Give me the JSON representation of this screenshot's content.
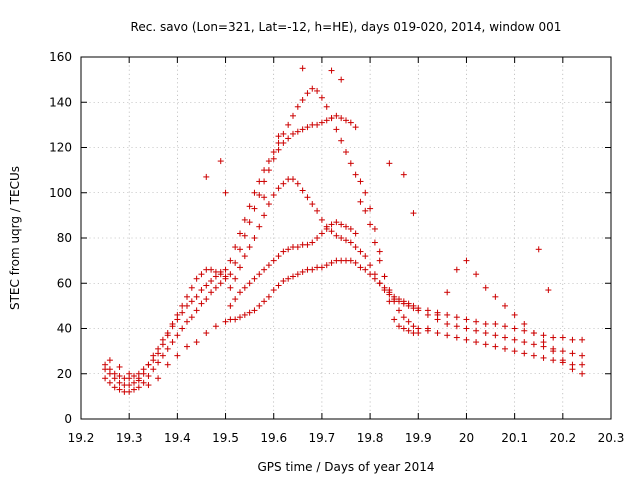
{
  "chart_data": {
    "type": "scatter",
    "title": "Rec. savo (Lon=321, Lat=-12, h=HE), days 019-020, 2014, window 001",
    "xlabel": "GPS time / Days of year 2014",
    "ylabel": "STEC from uqrg / TECUs",
    "xlim": [
      19.2,
      20.3
    ],
    "ylim": [
      0,
      160
    ],
    "xticks": [
      19.2,
      19.3,
      19.4,
      19.5,
      19.6,
      19.7,
      19.8,
      19.9,
      20.0,
      20.1,
      20.2,
      20.3
    ],
    "xtick_labels": [
      "19.2",
      "19.3",
      "19.4",
      "19.5",
      "19.6",
      "19.7",
      "19.8",
      "19.9",
      "20",
      "20.1",
      "20.2",
      "20.3"
    ],
    "yticks": [
      0,
      20,
      40,
      60,
      80,
      100,
      120,
      140,
      160
    ],
    "ytick_labels": [
      "0",
      "20",
      "40",
      "60",
      "80",
      "100",
      "120",
      "140",
      "160"
    ],
    "grid": true,
    "marker": "plus",
    "color": "#cc0000",
    "series": [
      {
        "name": "STEC",
        "x": [
          19.25,
          19.26,
          19.27,
          19.28,
          19.29,
          19.3,
          19.31,
          19.32,
          19.33,
          19.34,
          19.35,
          19.36,
          19.37,
          19.38,
          19.39,
          19.4,
          19.41,
          19.42,
          19.43,
          19.44,
          19.45,
          19.46,
          19.47,
          19.48,
          19.49,
          19.5,
          19.25,
          19.26,
          19.27,
          19.28,
          19.29,
          19.3,
          19.31,
          19.32,
          19.33,
          19.34,
          19.35,
          19.36,
          19.37,
          19.38,
          19.39,
          19.4,
          19.41,
          19.42,
          19.43,
          19.44,
          19.45,
          19.46,
          19.47,
          19.48,
          19.49,
          19.5,
          19.25,
          19.26,
          19.27,
          19.28,
          19.29,
          19.3,
          19.31,
          19.32,
          19.33,
          19.34,
          19.35,
          19.36,
          19.37,
          19.38,
          19.39,
          19.4,
          19.41,
          19.42,
          19.43,
          19.44,
          19.45,
          19.46,
          19.47,
          19.48,
          19.49,
          19.5,
          19.26,
          19.28,
          19.3,
          19.32,
          19.34,
          19.36,
          19.38,
          19.4,
          19.42,
          19.44,
          19.46,
          19.48,
          19.5,
          19.51,
          19.52,
          19.53,
          19.54,
          19.55,
          19.56,
          19.57,
          19.58,
          19.59,
          19.6,
          19.61,
          19.62,
          19.63,
          19.64,
          19.65,
          19.66,
          19.67,
          19.68,
          19.69,
          19.7,
          19.71,
          19.72,
          19.73,
          19.74,
          19.75,
          19.76,
          19.77,
          19.51,
          19.52,
          19.53,
          19.54,
          19.55,
          19.56,
          19.57,
          19.58,
          19.59,
          19.6,
          19.61,
          19.62,
          19.63,
          19.64,
          19.65,
          19.66,
          19.67,
          19.68,
          19.69,
          19.7,
          19.71,
          19.72,
          19.73,
          19.74,
          19.75,
          19.76,
          19.77,
          19.51,
          19.52,
          19.53,
          19.54,
          19.55,
          19.56,
          19.57,
          19.58,
          19.59,
          19.6,
          19.61,
          19.62,
          19.63,
          19.64,
          19.65,
          19.66,
          19.67,
          19.68,
          19.69,
          19.7,
          19.71,
          19.72,
          19.73,
          19.74,
          19.75,
          19.76,
          19.77,
          19.51,
          19.52,
          19.53,
          19.54,
          19.55,
          19.56,
          19.57,
          19.58,
          19.59,
          19.6,
          19.61,
          19.62,
          19.63,
          19.64,
          19.65,
          19.66,
          19.67,
          19.68,
          19.69,
          19.7,
          19.71,
          19.72,
          19.73,
          19.74,
          19.75,
          19.76,
          19.77,
          19.51,
          19.52,
          19.53,
          19.54,
          19.55,
          19.56,
          19.57,
          19.58,
          19.59,
          19.6,
          19.61,
          19.62,
          19.63,
          19.64,
          19.65,
          19.66,
          19.67,
          19.68,
          19.69,
          19.7,
          19.71,
          19.72,
          19.73,
          19.74,
          19.75,
          19.76,
          19.77,
          19.78,
          19.79,
          19.8,
          19.81,
          19.82,
          19.83,
          19.84,
          19.85,
          19.86,
          19.87,
          19.88,
          19.89,
          19.9,
          19.92,
          19.94,
          19.96,
          19.98,
          20.0,
          20.02,
          20.04,
          20.06,
          20.08,
          20.1,
          20.12,
          20.14,
          20.16,
          20.18,
          20.2,
          20.22,
          20.24,
          19.78,
          19.79,
          19.8,
          19.81,
          19.82,
          19.83,
          19.84,
          19.85,
          19.86,
          19.87,
          19.88,
          19.89,
          19.9,
          19.92,
          19.94,
          19.96,
          19.98,
          20.0,
          20.02,
          20.04,
          20.06,
          20.08,
          20.1,
          20.12,
          20.14,
          20.16,
          20.18,
          20.2,
          20.22,
          20.24,
          19.78,
          19.79,
          19.8,
          19.81,
          19.82,
          19.83,
          19.84,
          19.85,
          19.86,
          19.87,
          19.88,
          19.89,
          19.9,
          19.92,
          19.94,
          19.96,
          19.98,
          20.0,
          20.02,
          20.04,
          20.06,
          20.08,
          20.1,
          20.12,
          20.14,
          20.16,
          20.18,
          20.2,
          20.22,
          20.24,
          19.78,
          19.79,
          19.8,
          19.81,
          19.82,
          19.83,
          19.84,
          19.85,
          19.86,
          19.87,
          19.88,
          19.89,
          19.9,
          19.92,
          19.94,
          19.96,
          19.98,
          20.0,
          20.02,
          20.04,
          20.06,
          20.08,
          20.1,
          20.12,
          20.14,
          20.16,
          20.18,
          20.2,
          20.22,
          20.24,
          19.46,
          19.49,
          19.5,
          19.58,
          19.61,
          19.66,
          19.72,
          19.74,
          19.84,
          19.87,
          19.89,
          20.15,
          20.17
        ],
        "y": [
          22,
          20,
          18,
          16,
          15,
          15,
          16,
          18,
          20,
          24,
          28,
          31,
          35,
          38,
          41,
          44,
          47,
          50,
          52,
          54,
          57,
          59,
          61,
          63,
          65,
          66,
          18,
          16,
          14,
          13,
          12,
          12,
          13,
          14,
          16,
          19,
          22,
          25,
          28,
          31,
          34,
          37,
          40,
          43,
          45,
          48,
          51,
          53,
          56,
          58,
          60,
          62,
          24,
          22,
          20,
          19,
          18,
          18,
          19,
          20,
          22,
          24,
          26,
          29,
          33,
          37,
          42,
          46,
          50,
          54,
          58,
          62,
          64,
          66,
          66,
          65,
          64,
          63,
          26,
          23,
          20,
          17,
          15,
          18,
          24,
          28,
          32,
          34,
          38,
          41,
          43,
          44,
          44,
          45,
          46,
          47,
          48,
          50,
          52,
          54,
          57,
          59,
          61,
          62,
          63,
          64,
          65,
          66,
          66,
          67,
          67,
          68,
          69,
          70,
          70,
          70,
          70,
          69,
          50,
          53,
          56,
          58,
          60,
          62,
          64,
          66,
          68,
          70,
          72,
          74,
          75,
          76,
          76,
          77,
          77,
          78,
          80,
          82,
          84,
          86,
          87,
          86,
          85,
          84,
          82,
          58,
          62,
          67,
          72,
          76,
          80,
          85,
          90,
          95,
          99,
          102,
          104,
          106,
          106,
          104,
          101,
          98,
          95,
          92,
          88,
          85,
          83,
          81,
          80,
          79,
          78,
          76,
          64,
          69,
          75,
          81,
          87,
          93,
          99,
          105,
          110,
          115,
          119,
          122,
          124,
          126,
          127,
          128,
          129,
          130,
          130,
          131,
          132,
          133,
          134,
          133,
          132,
          131,
          129,
          70,
          76,
          82,
          88,
          94,
          100,
          105,
          110,
          114,
          118,
          122,
          126,
          130,
          134,
          138,
          141,
          144,
          146,
          145,
          142,
          138,
          133,
          128,
          123,
          118,
          113,
          108,
          67,
          66,
          64,
          62,
          60,
          58,
          56,
          54,
          53,
          52,
          51,
          50,
          49,
          48,
          47,
          46,
          45,
          44,
          43,
          42,
          42,
          41,
          40,
          39,
          38,
          37,
          36,
          36,
          35,
          35,
          74,
          72,
          68,
          64,
          60,
          57,
          55,
          53,
          52,
          51,
          50,
          49,
          48,
          46,
          44,
          42,
          41,
          40,
          39,
          38,
          37,
          36,
          35,
          34,
          33,
          32,
          31,
          30,
          29,
          28,
          96,
          92,
          86,
          78,
          70,
          63,
          57,
          52,
          48,
          45,
          43,
          41,
          40,
          39,
          38,
          37,
          36,
          35,
          34,
          33,
          32,
          31,
          30,
          29,
          28,
          27,
          26,
          25,
          24,
          24,
          105,
          100,
          93,
          84,
          74,
          63,
          52,
          44,
          41,
          40,
          39,
          38,
          38,
          40,
          46,
          56,
          66,
          70,
          64,
          58,
          54,
          50,
          46,
          42,
          38,
          34,
          30,
          26,
          22,
          20,
          107,
          114,
          100,
          98,
          125,
          155,
          154,
          150,
          113,
          108,
          91,
          75,
          57
        ]
      }
    ]
  }
}
